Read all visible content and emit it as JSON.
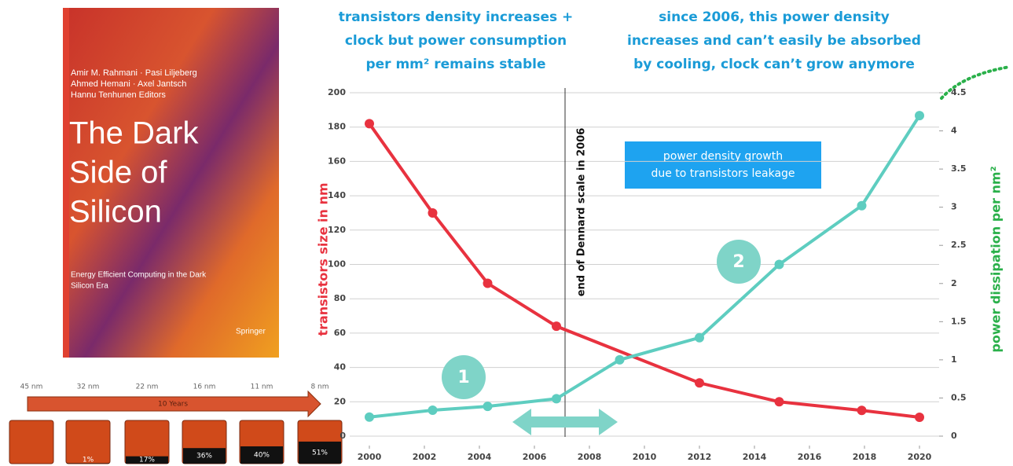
{
  "book": {
    "authors": [
      "Amir M. Rahmani · Pasi Liljeberg",
      "Ahmed Hemani · Axel Jantsch",
      "Hannu Tenhunen  Editors"
    ],
    "title": [
      "The Dark",
      "Side of",
      "Silicon"
    ],
    "subtitle": [
      "Energy Efficient Computing in the Dark",
      "Silicon Era"
    ],
    "publisher": "Springer"
  },
  "chips": {
    "nodes": [
      "45 nm",
      "32 nm",
      "22 nm",
      "16 nm",
      "11 nm",
      "8 nm"
    ],
    "span": "10 Years",
    "dark": [
      null,
      1,
      17,
      36,
      40,
      51
    ],
    "dark_labels": [
      null,
      "1%",
      "17%",
      "36%",
      "40%",
      "51%"
    ]
  },
  "chart_data": {
    "type": "line",
    "heading_left": [
      "transistors density increases +",
      "clock but power consumption",
      "per mm² remains stable"
    ],
    "heading_right": [
      "since 2006, this power density",
      "increases and can’t easily be absorbed",
      "by cooling, clock can’t grow anymore"
    ],
    "ylabel": "transistors size in nm",
    "y2label": "power dissipation per nm²",
    "annotations": {
      "dennard": "end of Dennard scale in 2006",
      "box": [
        "power density growth",
        "due to transistors leakage"
      ],
      "markers": [
        "1",
        "2"
      ]
    },
    "xlim": [
      2000,
      2020
    ],
    "xticks": [
      2000,
      2002,
      2004,
      2006,
      2008,
      2010,
      2012,
      2014,
      2016,
      2018,
      2020
    ],
    "ylim": [
      0,
      200
    ],
    "yticks": [
      0,
      20,
      40,
      60,
      80,
      100,
      120,
      140,
      160,
      180,
      200
    ],
    "y2lim": [
      0,
      4.5
    ],
    "y2ticks": [
      0,
      0.5,
      1,
      1.5,
      2,
      2.5,
      3,
      3.5,
      4,
      4.5
    ],
    "grid": true,
    "series": [
      {
        "name": "transistors size",
        "color": "#e8323f",
        "x": [
          2000,
          2002.3,
          2004.3,
          2006.8,
          2012,
          2014.9,
          2017.9,
          2020
        ],
        "values": [
          182,
          130,
          89,
          64,
          31,
          20,
          15,
          11
        ]
      },
      {
        "name": "power dissipation",
        "color": "#5ecdc0",
        "axis": "y2",
        "x": [
          2000,
          2002.3,
          2004.3,
          2006.8,
          2009.1,
          2012,
          2014.9,
          2017.9,
          2020
        ],
        "values": [
          0.25,
          0.34,
          0.39,
          0.49,
          1.0,
          1.29,
          2.25,
          3.02,
          4.2
        ]
      }
    ]
  }
}
